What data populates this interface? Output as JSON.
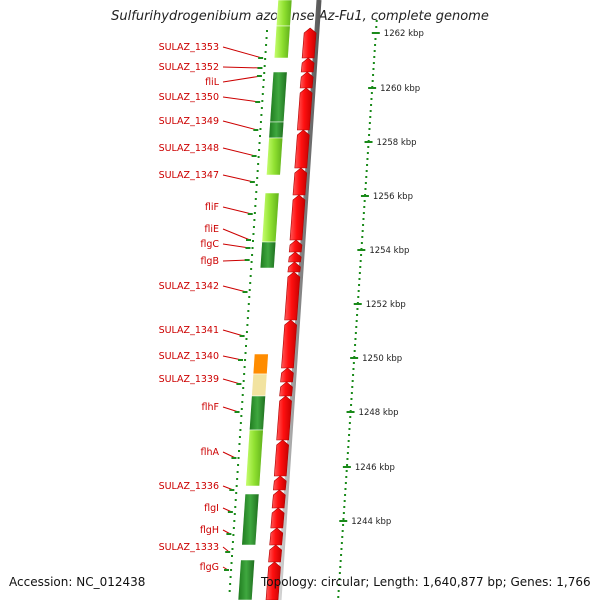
{
  "title": "Sulfurihydrogenibium azorense Az-Fu1, complete genome",
  "accession": "Accession: NC_012438",
  "topology": "Topology: circular; Length: 1,640,877 bp; Genes: 1,766",
  "kbp_ticks": [
    "1262 kbp",
    "1260 kbp",
    "1258 kbp",
    "1256 kbp",
    "1254 kbp",
    "1252 kbp",
    "1250 kbp",
    "1248 kbp",
    "1246 kbp",
    "1244 kbp"
  ],
  "genes": [
    "SULAZ_1353",
    "SULAZ_1352",
    "fliL",
    "SULAZ_1350",
    "SULAZ_1349",
    "SULAZ_1348",
    "SULAZ_1347",
    "fliF",
    "fliE",
    "flgC",
    "flgB",
    "SULAZ_1342",
    "SULAZ_1341",
    "SULAZ_1340",
    "SULAZ_1339",
    "flhF",
    "flhA",
    "SULAZ_1336",
    "flgI",
    "flgH",
    "SULAZ_1333",
    "flgG"
  ],
  "colors": {
    "label": "#cc0000",
    "cds_red": "#ff1a1a",
    "dark_green": "#2e8b2e",
    "light_green": "#9be83a",
    "orange": "#ff8c00",
    "tan": "#f2e3a0",
    "tick_green": "#1a8a1a"
  }
}
